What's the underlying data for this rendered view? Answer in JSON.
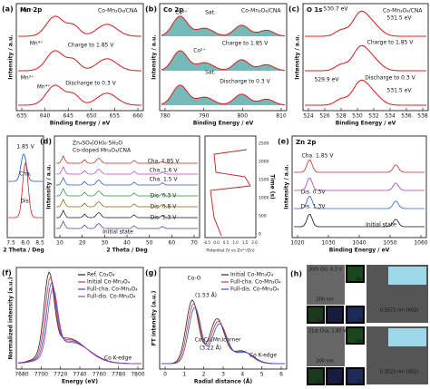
{
  "panels": [
    {
      "label": "(a)",
      "title": "Mn 2p",
      "legend": [
        "Co-Mn₃O₄/CNA"
      ],
      "x_label": "Binding Energy / eV",
      "y_label": "Intensity / a.u.",
      "x_ticks": [
        "635",
        "640",
        "645",
        "650",
        "655",
        "660"
      ],
      "notes": [
        "Charge to 1.85 V",
        "Discharge to 0.3 V",
        "Mn³⁺",
        "Mn⁴⁺",
        "Mn³⁺",
        "Mn⁴⁺"
      ]
    },
    {
      "label": "(b)",
      "title": "Co 2p",
      "legend": [
        "Co-Mn₃O₄/CNA"
      ],
      "x_label": "Binding Energy / eV",
      "y_label": "Intensity / a.u.",
      "x_ticks": [
        "780",
        "790",
        "800",
        "810"
      ],
      "notes": [
        "Charge to 1.85 V",
        "Discharge to 0.3 V",
        "Co³⁺",
        "Co²⁺",
        "Sat.",
        "Sat."
      ]
    },
    {
      "label": "(c)",
      "title": "O 1s",
      "legend": [
        "Co-Mn₃O₄/CNA"
      ],
      "x_label": "Binding Energy / eV",
      "y_label": "Intensity / a.u.",
      "x_ticks": [
        "524",
        "526",
        "528",
        "530",
        "532",
        "534",
        "536",
        "538"
      ],
      "notes": [
        "Charge to 1.85 V",
        "Discharge to 0.3 V",
        "530.7 eV",
        "531.5 eV",
        "529.9 eV",
        "531.5 eV"
      ]
    },
    {
      "label": "(d)",
      "title": "",
      "legend": [
        "Zn₄SO₄(OH)₆·5H₂O",
        "Co-doped Mn₃O₄/CNA"
      ],
      "x_label": "2 Theta / Deg",
      "y_label": "Intensity / a.u.",
      "x_ticks": [
        "10",
        "20",
        "30",
        "40",
        "50",
        "60",
        "70"
      ],
      "notes": [
        "Cha. 1.85 V",
        "Cha. 1.6 V",
        "Cha. 1.5 V",
        "Dis. 0.3 V",
        "Dis. 0.8 V",
        "Dis. 1.3 V",
        "Initial state"
      ]
    },
    {
      "label": "(e)",
      "title": "Zn 2p",
      "legend": [],
      "x_label": "Binding Energy / eV",
      "y_label": "Intensity / a.u.",
      "x_ticks": [
        "1020",
        "1030",
        "1040",
        "1050",
        "1060"
      ],
      "notes": [
        "Cha. 1.85 V",
        "Dis. 0.3V",
        "Dis. 1.3V",
        "Initial state"
      ]
    },
    {
      "label": "(f)",
      "title": "",
      "legend": [
        "Ref. Co₃O₄",
        "Initial Co-Mn₃O₄",
        "Full-cha. Co-Mn₃O₄",
        "Full-dis. Co-Mn₃O₄"
      ],
      "x_label": "Energy (eV)",
      "y_label": "Normalized intensity (a.u.)",
      "x_ticks": [
        "7680",
        "7700",
        "7720",
        "7740",
        "7760",
        "7780",
        "7800"
      ],
      "notes": [
        "Co K-edge"
      ]
    },
    {
      "label": "(g)",
      "title": "",
      "legend": [
        "Initial Co-Mn₃O₄",
        "Full-cha. Co-Mn₃O₄",
        "Full-dis. Co-Mn₃O₄"
      ],
      "x_label": "Radial distance (Å)",
      "y_label": "FT intensity (a.u.)",
      "x_ticks": [
        "0",
        "1",
        "2",
        "3",
        "4",
        "5",
        "6"
      ],
      "notes": [
        "Co-O",
        "(1.53 Å)",
        "Co-Co(Mn)corner",
        "(3.22 Å)",
        "Co K-edge"
      ]
    }
  ],
  "panel_d_insets": {
    "zoom_ticks": [
      "7.5",
      "8.0",
      "8.5"
    ],
    "zoom_notes": [
      "1.85 V",
      "Cha.",
      "Dis."
    ],
    "zoom_x_label": "2 Theta / Deg",
    "gcd_x_ticks": [
      "-0.5",
      "0.0",
      "0.5",
      "1.0",
      "1.5",
      "2.0"
    ],
    "gcd_y_ticks": [
      "0",
      "500",
      "1000",
      "1500",
      "2000",
      "2500"
    ],
    "gcd_x_label": "Potential (V vs Zn²⁺/Zn)",
    "gcd_y_label": "Time (s)"
  },
  "panel_h": {
    "label": "(h)",
    "rows": [
      {
        "title": "20th Dis. 0.3 V",
        "scale": "200 nm",
        "maps": [
          "Mn",
          "Zn",
          "Co",
          "O"
        ],
        "lattice": "0.3573 nm (002)"
      },
      {
        "title": "21st Cha. 1.85 V",
        "scale": "200 nm",
        "maps": [
          "Mn",
          "Zn",
          "Co",
          "O"
        ],
        "lattice": "0.3523 nm (002)"
      }
    ]
  }
}
